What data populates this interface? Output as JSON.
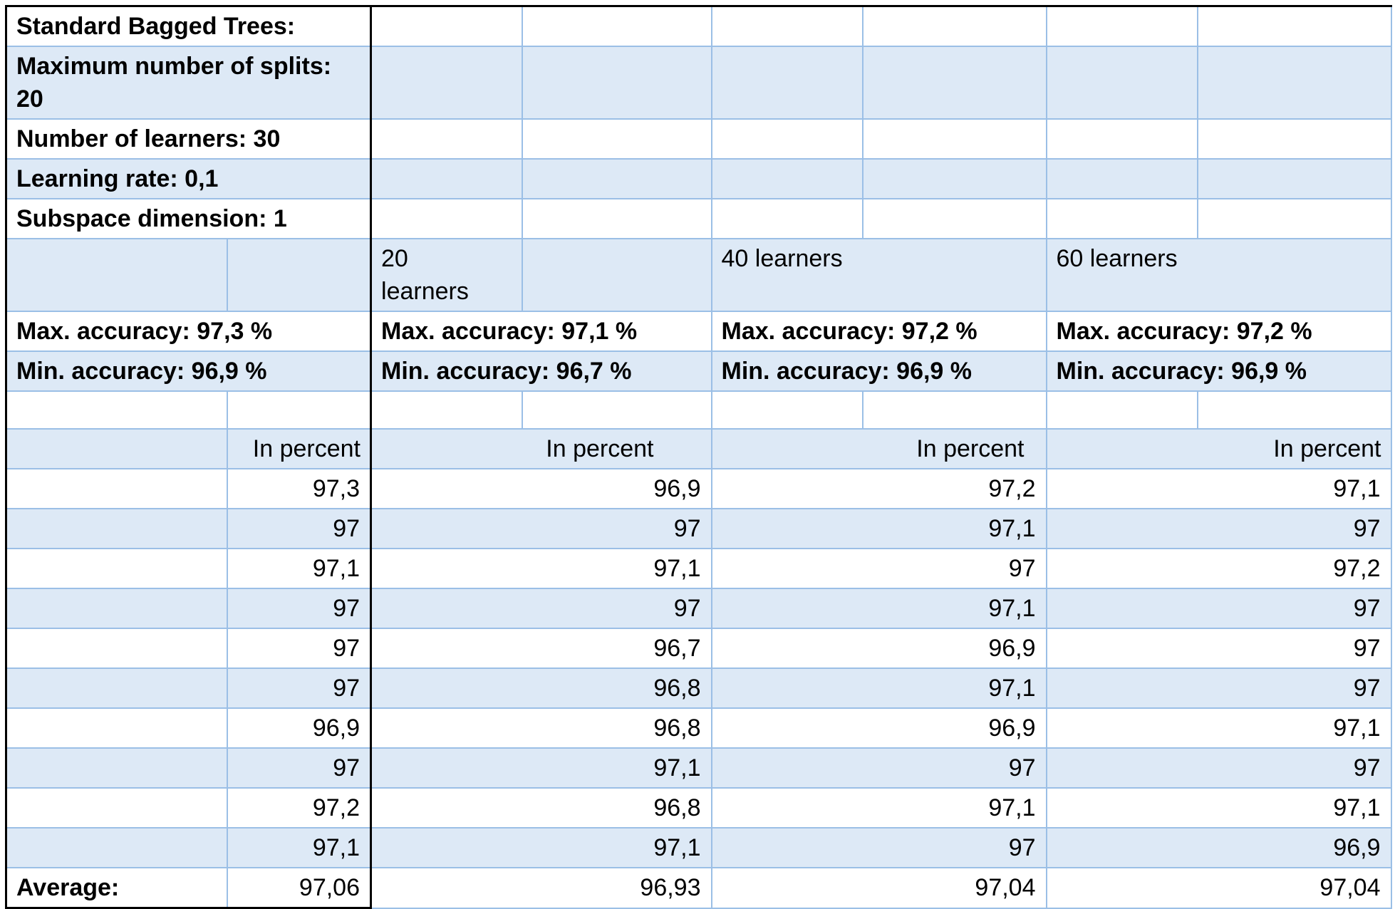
{
  "header": {
    "title": "Standard Bagged Trees:",
    "max_splits": "Maximum number of splits: 20",
    "num_learners": "Number of learners: 30",
    "learning_rate": "Learning rate: 0,1",
    "subspace_dimension": "Subspace dimension: 1"
  },
  "groups": [
    {
      "label": "",
      "max_accuracy": "Max. accuracy: 97,3 %",
      "min_accuracy": "Min. accuracy: 96,9 %",
      "unit": "In percent",
      "values": [
        "97,3",
        "97",
        "97,1",
        "97",
        "97",
        "97",
        "96,9",
        "97",
        "97,2",
        "97,1"
      ],
      "average": "97,06"
    },
    {
      "label": "20 learners",
      "max_accuracy": "Max. accuracy: 97,1 %",
      "min_accuracy": "Min. accuracy: 96,7 %",
      "unit": "In percent",
      "values": [
        "96,9",
        "97",
        "97,1",
        "97",
        "96,7",
        "96,8",
        "96,8",
        "97,1",
        "96,8",
        "97,1"
      ],
      "average": "96,93"
    },
    {
      "label": "40 learners",
      "max_accuracy": "Max. accuracy: 97,2 %",
      "min_accuracy": "Min. accuracy: 96,9 %",
      "unit": "In percent",
      "values": [
        "97,2",
        "97,1",
        "97",
        "97,1",
        "96,9",
        "97,1",
        "96,9",
        "97",
        "97,1",
        "97"
      ],
      "average": "97,04"
    },
    {
      "label": "60 learners",
      "max_accuracy": "Max. accuracy: 97,2 %",
      "min_accuracy": "Min. accuracy: 96,9 %",
      "unit": "In percent",
      "values": [
        "97,1",
        "97",
        "97,2",
        "97",
        "97",
        "97",
        "97,1",
        "97",
        "97,1",
        "96,9"
      ],
      "average": "97,04"
    }
  ],
  "average_label": "Average:"
}
